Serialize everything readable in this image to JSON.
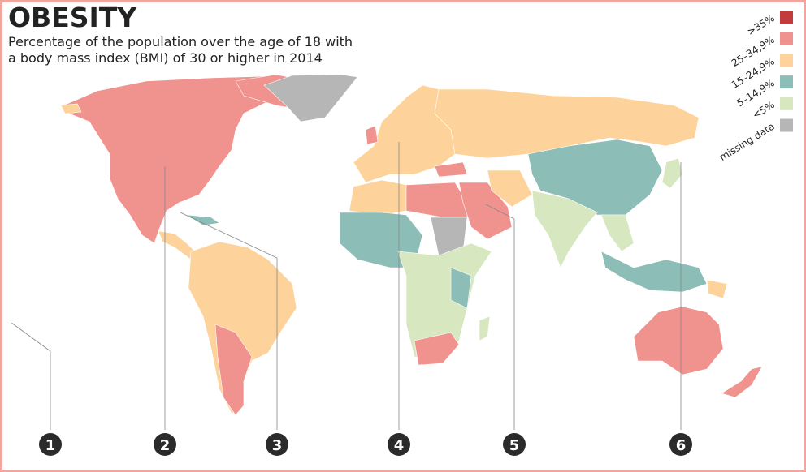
{
  "header": {
    "title": "OBESITY",
    "subtitle": [
      "Percentage of the population over the age of 18 with",
      "a body mass index (BMI) of 30 or higher in 2014"
    ]
  },
  "legend": [
    {
      "label": ">35%",
      "color": "#c23b3f"
    },
    {
      "label": "25–34,9%",
      "color": "#f0938f"
    },
    {
      "label": "15–24,9%",
      "color": "#fdd39b"
    },
    {
      "label": "5–14,9%",
      "color": "#8cbdb6"
    },
    {
      "label": "<5%",
      "color": "#d7e7c0"
    },
    {
      "label": "missing data",
      "color": "#b6b6b6"
    }
  ],
  "markers": [
    1,
    2,
    3,
    4,
    5,
    6
  ]
}
